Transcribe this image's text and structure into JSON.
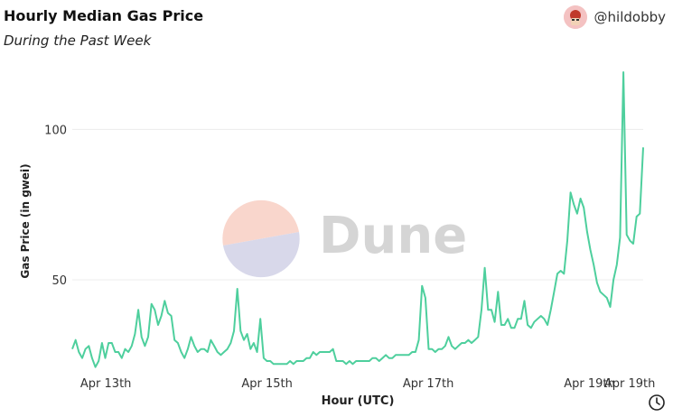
{
  "header": {
    "title": "Hourly Median Gas Price",
    "subtitle": "During the Past Week",
    "author": "@hildobby",
    "avatar_icon": "avatar-icon"
  },
  "watermark": {
    "text": "Dune"
  },
  "footer": {
    "clock_icon": "clock-icon"
  },
  "colors": {
    "line": "#4ecf9d",
    "grid": "#ececec",
    "watermark_top": "#f9d6cc",
    "watermark_bottom": "#d8d8ea",
    "watermark_text": "#d5d5d5"
  },
  "chart_data": {
    "type": "line",
    "title": "Hourly Median Gas Price",
    "subtitle": "During the Past Week",
    "xlabel": "Hour (UTC)",
    "ylabel": "Gas Price (in gwei)",
    "yticks": [
      50,
      100
    ],
    "ylim": [
      20,
      122
    ],
    "xlim": [
      0,
      170
    ],
    "grid": true,
    "xticks": [
      {
        "x": 10,
        "label": "Apr 13th"
      },
      {
        "x": 58,
        "label": "Apr 15th"
      },
      {
        "x": 106,
        "label": "Apr 17th"
      },
      {
        "x": 154,
        "label": "Apr 19th"
      },
      {
        "x": 166,
        "label": "Apr 19th"
      }
    ],
    "series": [
      {
        "values": [
          27,
          30,
          26,
          24,
          27,
          28,
          24,
          21,
          23,
          29,
          24,
          29,
          29,
          26,
          26,
          24,
          27,
          26,
          28,
          32,
          40,
          31,
          28,
          31,
          42,
          40,
          35,
          38,
          43,
          39,
          38,
          30,
          29,
          26,
          24,
          27,
          31,
          28,
          26,
          27,
          27,
          26,
          30,
          28,
          26,
          25,
          26,
          27,
          29,
          33,
          47,
          33,
          30,
          32,
          27,
          29,
          26,
          37,
          24,
          23,
          23,
          22,
          22,
          22,
          22,
          22,
          23,
          22,
          23,
          23,
          23,
          24,
          24,
          26,
          25,
          26,
          26,
          26,
          26,
          27,
          23,
          23,
          23,
          22,
          23,
          22,
          23,
          23,
          23,
          23,
          23,
          24,
          24,
          23,
          24,
          25,
          24,
          24,
          25,
          25,
          25,
          25,
          25,
          26,
          26,
          30,
          48,
          44,
          27,
          27,
          26,
          27,
          27,
          28,
          31,
          28,
          27,
          28,
          29,
          29,
          30,
          29,
          30,
          31,
          40,
          54,
          40,
          40,
          36,
          46,
          35,
          35,
          37,
          34,
          34,
          37,
          37,
          43,
          35,
          34,
          36,
          37,
          38,
          37,
          35,
          40,
          46,
          52,
          53,
          52,
          63,
          79,
          75,
          72,
          77,
          74,
          66,
          60,
          55,
          49,
          46,
          45,
          44,
          41,
          50,
          55,
          64,
          119,
          65,
          63,
          62,
          71,
          72,
          94
        ]
      }
    ]
  }
}
